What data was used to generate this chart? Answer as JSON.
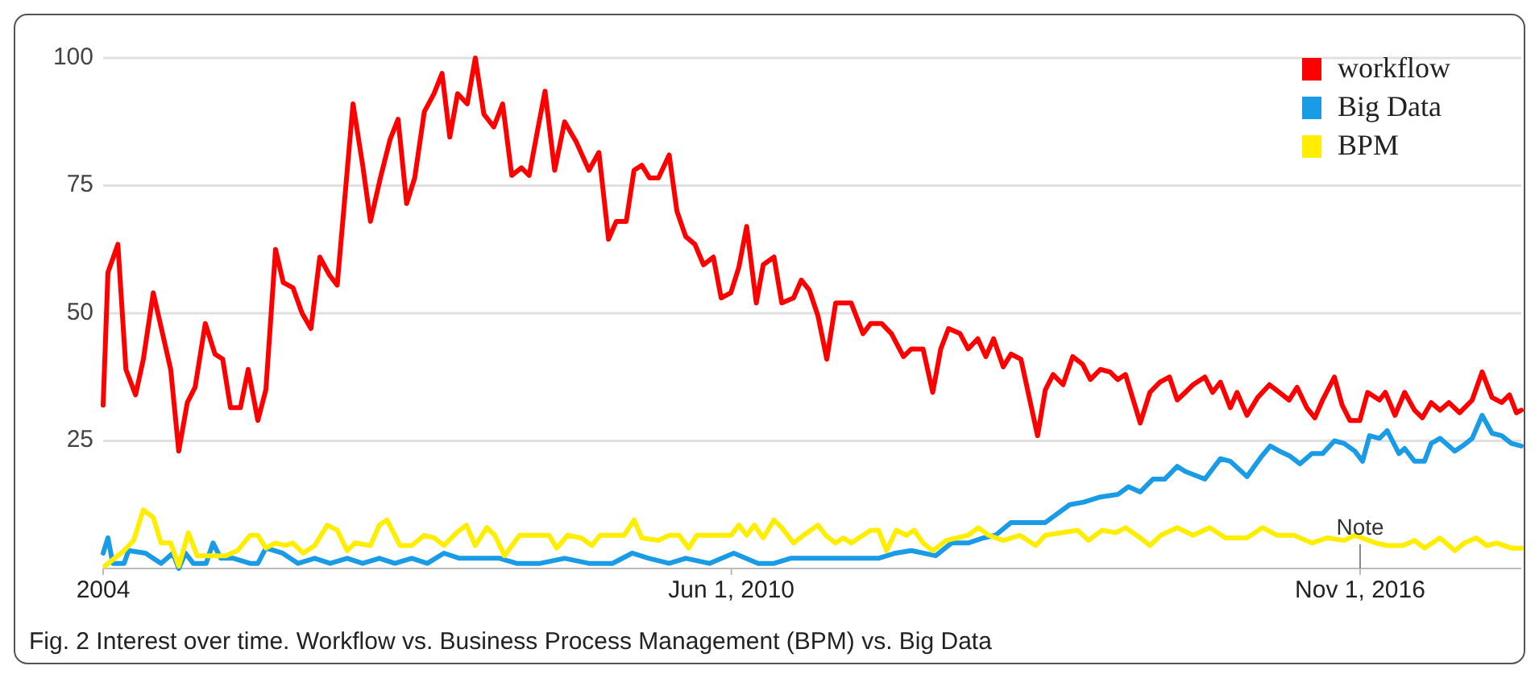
{
  "chart_data": {
    "type": "line",
    "xlim": [
      "2004-01-01",
      "2018-06-25"
    ],
    "xticks": [
      {
        "value": "2004-01-01",
        "label": "2004"
      },
      {
        "value": "2010-06-01",
        "label": "Jun 1, 2010"
      },
      {
        "value": "2016-11-01",
        "label": "Nov 1, 2016"
      }
    ],
    "ylim": [
      0,
      100
    ],
    "yticks": [
      25,
      50,
      75,
      100
    ],
    "grid": "y",
    "legend": "top right",
    "line_style": "solid",
    "marker": "none",
    "annotations": [
      {
        "text": "Note",
        "x": "2016-11-01",
        "y": 6
      },
      "Fig. 2  Interest over time. Workflow vs. Business Process Management (BPM) vs. Big Data"
    ],
    "series": [
      {
        "name": "workflow",
        "color": "#ff0000",
        "x": [
          "2004-01-01",
          "2004-01-19",
          "2004-02-25",
          "2004-03-26",
          "2004-05-01",
          "2004-05-30",
          "2004-07-06",
          "2004-09-09",
          "2004-10-09",
          "2004-11-10",
          "2004-12-09",
          "2005-01-16",
          "2005-02-21",
          "2005-03-22",
          "2005-04-20",
          "2005-05-27",
          "2005-06-25",
          "2005-07-31",
          "2005-08-30",
          "2005-10-05",
          "2005-11-03",
          "2005-12-09",
          "2006-01-12",
          "2006-02-14",
          "2006-03-19",
          "2006-04-24",
          "2006-05-23",
          "2006-07-21",
          "2006-08-26",
          "2006-09-24",
          "2006-10-31",
          "2006-12-06",
          "2007-01-05",
          "2007-02-06",
          "2007-03-08",
          "2007-04-13",
          "2007-05-19",
          "2007-06-18",
          "2007-07-17",
          "2007-08-15",
          "2007-09-20",
          "2007-10-20",
          "2007-11-21",
          "2007-12-28",
          "2008-01-30",
          "2008-03-04",
          "2008-04-09",
          "2008-05-08",
          "2008-06-07",
          "2008-07-06",
          "2008-08-11",
          "2008-09-17",
          "2008-10-31",
          "2008-12-17",
          "2009-01-23",
          "2009-02-28",
          "2009-03-29",
          "2009-05-05",
          "2009-06-03",
          "2009-07-02",
          "2009-07-31",
          "2009-09-02",
          "2009-10-12",
          "2009-11-10",
          "2009-12-13",
          "2010-01-16",
          "2010-02-17",
          "2010-03-26",
          "2010-04-24",
          "2010-05-30",
          "2010-06-29",
          "2010-07-28",
          "2010-09-02",
          "2010-09-28",
          "2010-11-07",
          "2010-12-06",
          "2011-01-19",
          "2011-02-17",
          "2011-03-19",
          "2011-04-20",
          "2011-05-23",
          "2011-06-25",
          "2011-08-22",
          "2011-10-05",
          "2011-11-03",
          "2011-12-13",
          "2012-01-19",
          "2012-03-04",
          "2012-04-02",
          "2012-05-16",
          "2012-06-21",
          "2012-07-21",
          "2012-08-19",
          "2012-10-01",
          "2012-10-31",
          "2012-12-06",
          "2013-01-05",
          "2013-02-03",
          "2013-03-11",
          "2013-04-09",
          "2013-05-16",
          "2013-07-17",
          "2013-08-15",
          "2013-09-13",
          "2013-10-20",
          "2013-11-25",
          "2014-01-01",
          "2014-01-30",
          "2014-03-08",
          "2014-04-13",
          "2014-05-12",
          "2014-06-10",
          "2014-08-04",
          "2014-09-09",
          "2014-10-16",
          "2014-11-21",
          "2014-12-20",
          "2015-01-19",
          "2015-02-17",
          "2015-04-02",
          "2015-05-01",
          "2015-05-30",
          "2015-07-06",
          "2015-07-31",
          "2015-09-06",
          "2015-10-16",
          "2015-11-29",
          "2016-01-05",
          "2016-02-10",
          "2016-03-11",
          "2016-04-16",
          "2016-05-16",
          "2016-06-14",
          "2016-07-28",
          "2016-08-26",
          "2016-09-24",
          "2016-10-31",
          "2016-11-29",
          "2017-01-12",
          "2017-02-03",
          "2017-03-11",
          "2017-04-16",
          "2017-05-23",
          "2017-06-21",
          "2017-07-24",
          "2017-08-26",
          "2017-09-28",
          "2017-11-07",
          "2017-12-24",
          "2018-01-30",
          "2018-03-08",
          "2018-04-13",
          "2018-05-12",
          "2018-06-07",
          "2018-06-25"
        ],
        "values": [
          32,
          58,
          63.5,
          39,
          34,
          41,
          54,
          39,
          23,
          32.5,
          35.5,
          48,
          42,
          41,
          31.5,
          31.5,
          39,
          29,
          35,
          62.5,
          56,
          55,
          50,
          47,
          61,
          57.5,
          55.5,
          91,
          79,
          68,
          76.5,
          84,
          88,
          71.5,
          76.5,
          89.5,
          93,
          97,
          84.5,
          93,
          91,
          100,
          89,
          86.5,
          91,
          77,
          78.5,
          77,
          85.5,
          93.5,
          78,
          87.5,
          83.5,
          78,
          81.5,
          64.5,
          68,
          68,
          78,
          79,
          76.5,
          76.5,
          81,
          70,
          65,
          63.5,
          59.5,
          61,
          53,
          54,
          59,
          67,
          52,
          59.5,
          61,
          52,
          53,
          56.5,
          54.5,
          49.5,
          41,
          52,
          52,
          46,
          48,
          48,
          46,
          41.5,
          43,
          43,
          34.5,
          43,
          47,
          46,
          43,
          45,
          41.5,
          45,
          39.5,
          42,
          41,
          26,
          35,
          38,
          36,
          41.5,
          40,
          37,
          39,
          38.5,
          37,
          38,
          28.5,
          34.5,
          36.5,
          37.5,
          33,
          34.5,
          36,
          37.5,
          34.5,
          36.5,
          31.5,
          34.5,
          30,
          33.5,
          36,
          34.5,
          33,
          35.5,
          31.5,
          29.5,
          33,
          37.5,
          32,
          29,
          29,
          34.5,
          33,
          34.5,
          30,
          34.5,
          31,
          29.5,
          32.5,
          31,
          32.5,
          30.5,
          33,
          38.5,
          33.5,
          32.5,
          34,
          30.5,
          31
        ]
      },
      {
        "name": "Big Data",
        "color": "#1a9be6",
        "x": [
          "2004-01-01",
          "2004-01-19",
          "2004-02-06",
          "2004-03-19",
          "2004-04-05",
          "2004-06-07",
          "2004-08-04",
          "2004-09-17",
          "2004-10-09",
          "2004-11-03",
          "2004-12-02",
          "2005-01-19",
          "2005-02-14",
          "2005-03-15",
          "2005-05-01",
          "2005-07-02",
          "2005-07-31",
          "2005-08-30",
          "2005-10-31",
          "2005-12-28",
          "2006-02-28",
          "2006-04-27",
          "2006-06-29",
          "2006-08-26",
          "2006-10-27",
          "2006-12-24",
          "2007-02-25",
          "2007-04-24",
          "2007-06-25",
          "2007-08-22",
          "2007-11-21",
          "2008-01-19",
          "2008-03-22",
          "2008-06-18",
          "2008-09-17",
          "2008-12-17",
          "2009-03-15",
          "2009-05-27",
          "2009-07-28",
          "2009-10-12",
          "2009-12-13",
          "2010-03-11",
          "2010-06-10",
          "2010-09-09",
          "2010-11-07",
          "2011-01-08",
          "2011-05-08",
          "2011-09-06",
          "2011-12-02",
          "2012-02-03",
          "2012-04-02",
          "2012-07-02",
          "2012-08-30",
          "2012-10-31",
          "2012-12-28",
          "2013-02-10",
          "2013-04-09",
          "2013-08-15",
          "2013-11-14",
          "2014-01-05",
          "2014-03-08",
          "2014-05-12",
          "2014-06-21",
          "2014-08-04",
          "2014-09-20",
          "2014-11-03",
          "2014-12-20",
          "2015-01-19",
          "2015-04-02",
          "2015-05-30",
          "2015-07-06",
          "2015-09-06",
          "2015-10-31",
          "2015-12-02",
          "2016-01-05",
          "2016-02-14",
          "2016-03-22",
          "2016-05-05",
          "2016-06-14",
          "2016-07-28",
          "2016-09-02",
          "2016-10-12",
          "2016-11-10",
          "2016-12-06",
          "2017-01-12",
          "2017-02-10",
          "2017-03-26",
          "2017-04-16",
          "2017-05-23",
          "2017-06-29",
          "2017-07-24",
          "2017-08-26",
          "2017-10-20",
          "2017-11-18",
          "2017-12-24",
          "2018-01-30",
          "2018-03-08",
          "2018-04-13",
          "2018-05-19",
          "2018-06-25"
        ],
        "values": [
          3,
          6,
          1,
          1,
          3.5,
          3,
          1,
          3,
          0,
          3,
          1,
          1,
          5,
          2,
          2,
          1,
          1,
          4,
          3,
          1,
          2,
          1,
          2,
          1,
          2,
          1,
          2,
          1,
          3,
          2,
          2,
          2,
          1,
          1,
          2,
          1,
          1,
          3,
          2,
          1,
          2,
          1,
          3,
          1,
          1,
          2,
          2,
          2,
          2,
          3,
          3.5,
          2.5,
          5,
          5,
          6,
          6.5,
          9,
          9,
          12.5,
          13,
          14,
          14.5,
          16,
          15,
          17.5,
          17.5,
          20,
          19,
          17.5,
          21.5,
          21,
          18,
          22,
          24,
          23,
          22,
          20.5,
          22.5,
          22.5,
          25,
          24.5,
          23,
          21,
          26,
          25.5,
          27,
          22.5,
          23.5,
          21,
          21,
          24.5,
          25.5,
          23,
          24,
          25.5,
          30,
          26.5,
          26,
          24.5,
          24
        ]
      },
      {
        "name": "BPM",
        "color": "#ffee00",
        "x": [
          "2004-01-08",
          "2004-03-19",
          "2004-04-24",
          "2004-05-30",
          "2004-07-06",
          "2004-08-04",
          "2004-09-09",
          "2004-10-09",
          "2004-11-14",
          "2004-12-17",
          "2005-02-14",
          "2005-04-02",
          "2005-05-16",
          "2005-07-02",
          "2005-07-31",
          "2005-08-30",
          "2005-10-05",
          "2005-11-10",
          "2005-12-09",
          "2006-01-16",
          "2006-02-28",
          "2006-04-16",
          "2006-05-23",
          "2006-06-29",
          "2006-07-28",
          "2006-09-24",
          "2006-10-27",
          "2006-11-25",
          "2007-01-12",
          "2007-02-25",
          "2007-04-13",
          "2007-05-19",
          "2007-06-25",
          "2007-08-11",
          "2007-09-17",
          "2007-10-20",
          "2007-12-02",
          "2008-01-01",
          "2008-02-06",
          "2008-04-02",
          "2008-07-21",
          "2008-08-19",
          "2008-09-28",
          "2008-11-18",
          "2008-12-28",
          "2009-01-27",
          "2009-04-27",
          "2009-06-03",
          "2009-07-02",
          "2009-09-02",
          "2009-10-12",
          "2009-11-18",
          "2009-12-24",
          "2010-01-23",
          "2010-05-30",
          "2010-06-29",
          "2010-07-28",
          "2010-08-26",
          "2010-09-28",
          "2010-11-07",
          "2010-12-06",
          "2011-01-19",
          "2011-02-25",
          "2011-04-20",
          "2011-05-19",
          "2011-06-25",
          "2011-07-24",
          "2011-08-22",
          "2011-11-03",
          "2011-12-02",
          "2012-01-01",
          "2012-02-06",
          "2012-03-15",
          "2012-04-13",
          "2012-05-16",
          "2012-06-21",
          "2012-08-11",
          "2012-10-31",
          "2012-12-09",
          "2013-01-16",
          "2013-03-11",
          "2013-05-12",
          "2013-07-10",
          "2013-08-15",
          "2013-12-13",
          "2014-01-23",
          "2014-03-15",
          "2014-05-05",
          "2014-06-10",
          "2014-08-04",
          "2014-09-09",
          "2014-10-20",
          "2014-12-20",
          "2015-02-17",
          "2015-04-20",
          "2015-06-18",
          "2015-09-06",
          "2015-11-03",
          "2015-12-28",
          "2016-02-28",
          "2016-05-05",
          "2016-07-02",
          "2016-09-02",
          "2016-10-12",
          "2016-12-28",
          "2017-02-10",
          "2017-04-09",
          "2017-05-23",
          "2017-06-29",
          "2017-08-26",
          "2017-10-20",
          "2017-11-25",
          "2018-01-08",
          "2018-02-17",
          "2018-03-26",
          "2018-05-19",
          "2018-06-25"
        ],
        "values": [
          0.5,
          3.5,
          5.5,
          11.5,
          10,
          5,
          5,
          0.5,
          7,
          2.5,
          2.5,
          2.5,
          3.5,
          6.5,
          6.5,
          4,
          5,
          4.5,
          5,
          3,
          4.5,
          8.5,
          7.5,
          3.5,
          5,
          4.5,
          8.5,
          9.5,
          4.5,
          4.5,
          6.5,
          6,
          4.5,
          7,
          8.5,
          4.5,
          8,
          6.5,
          2.5,
          6.5,
          6.5,
          4,
          6.5,
          6,
          4.5,
          6.5,
          6.5,
          9.5,
          6,
          5.5,
          6.5,
          6.5,
          4,
          6.5,
          6.5,
          8.5,
          6.5,
          8.5,
          6,
          9.5,
          8,
          5,
          6.5,
          8.5,
          6.5,
          5,
          6,
          5,
          7.5,
          7.5,
          3.5,
          7.5,
          6.5,
          7.5,
          5,
          3.5,
          5.5,
          6.5,
          8,
          6.5,
          5.5,
          6.5,
          4.5,
          6.5,
          7.5,
          5.5,
          7.5,
          7,
          8,
          6,
          4.5,
          6.5,
          8,
          6.5,
          8,
          6,
          6,
          8,
          6.5,
          6.5,
          5,
          6,
          5.5,
          6.5,
          5,
          4.5,
          4.5,
          5.5,
          4,
          6,
          3.5,
          5,
          6,
          4.5,
          5,
          4,
          4
        ]
      }
    ]
  }
}
